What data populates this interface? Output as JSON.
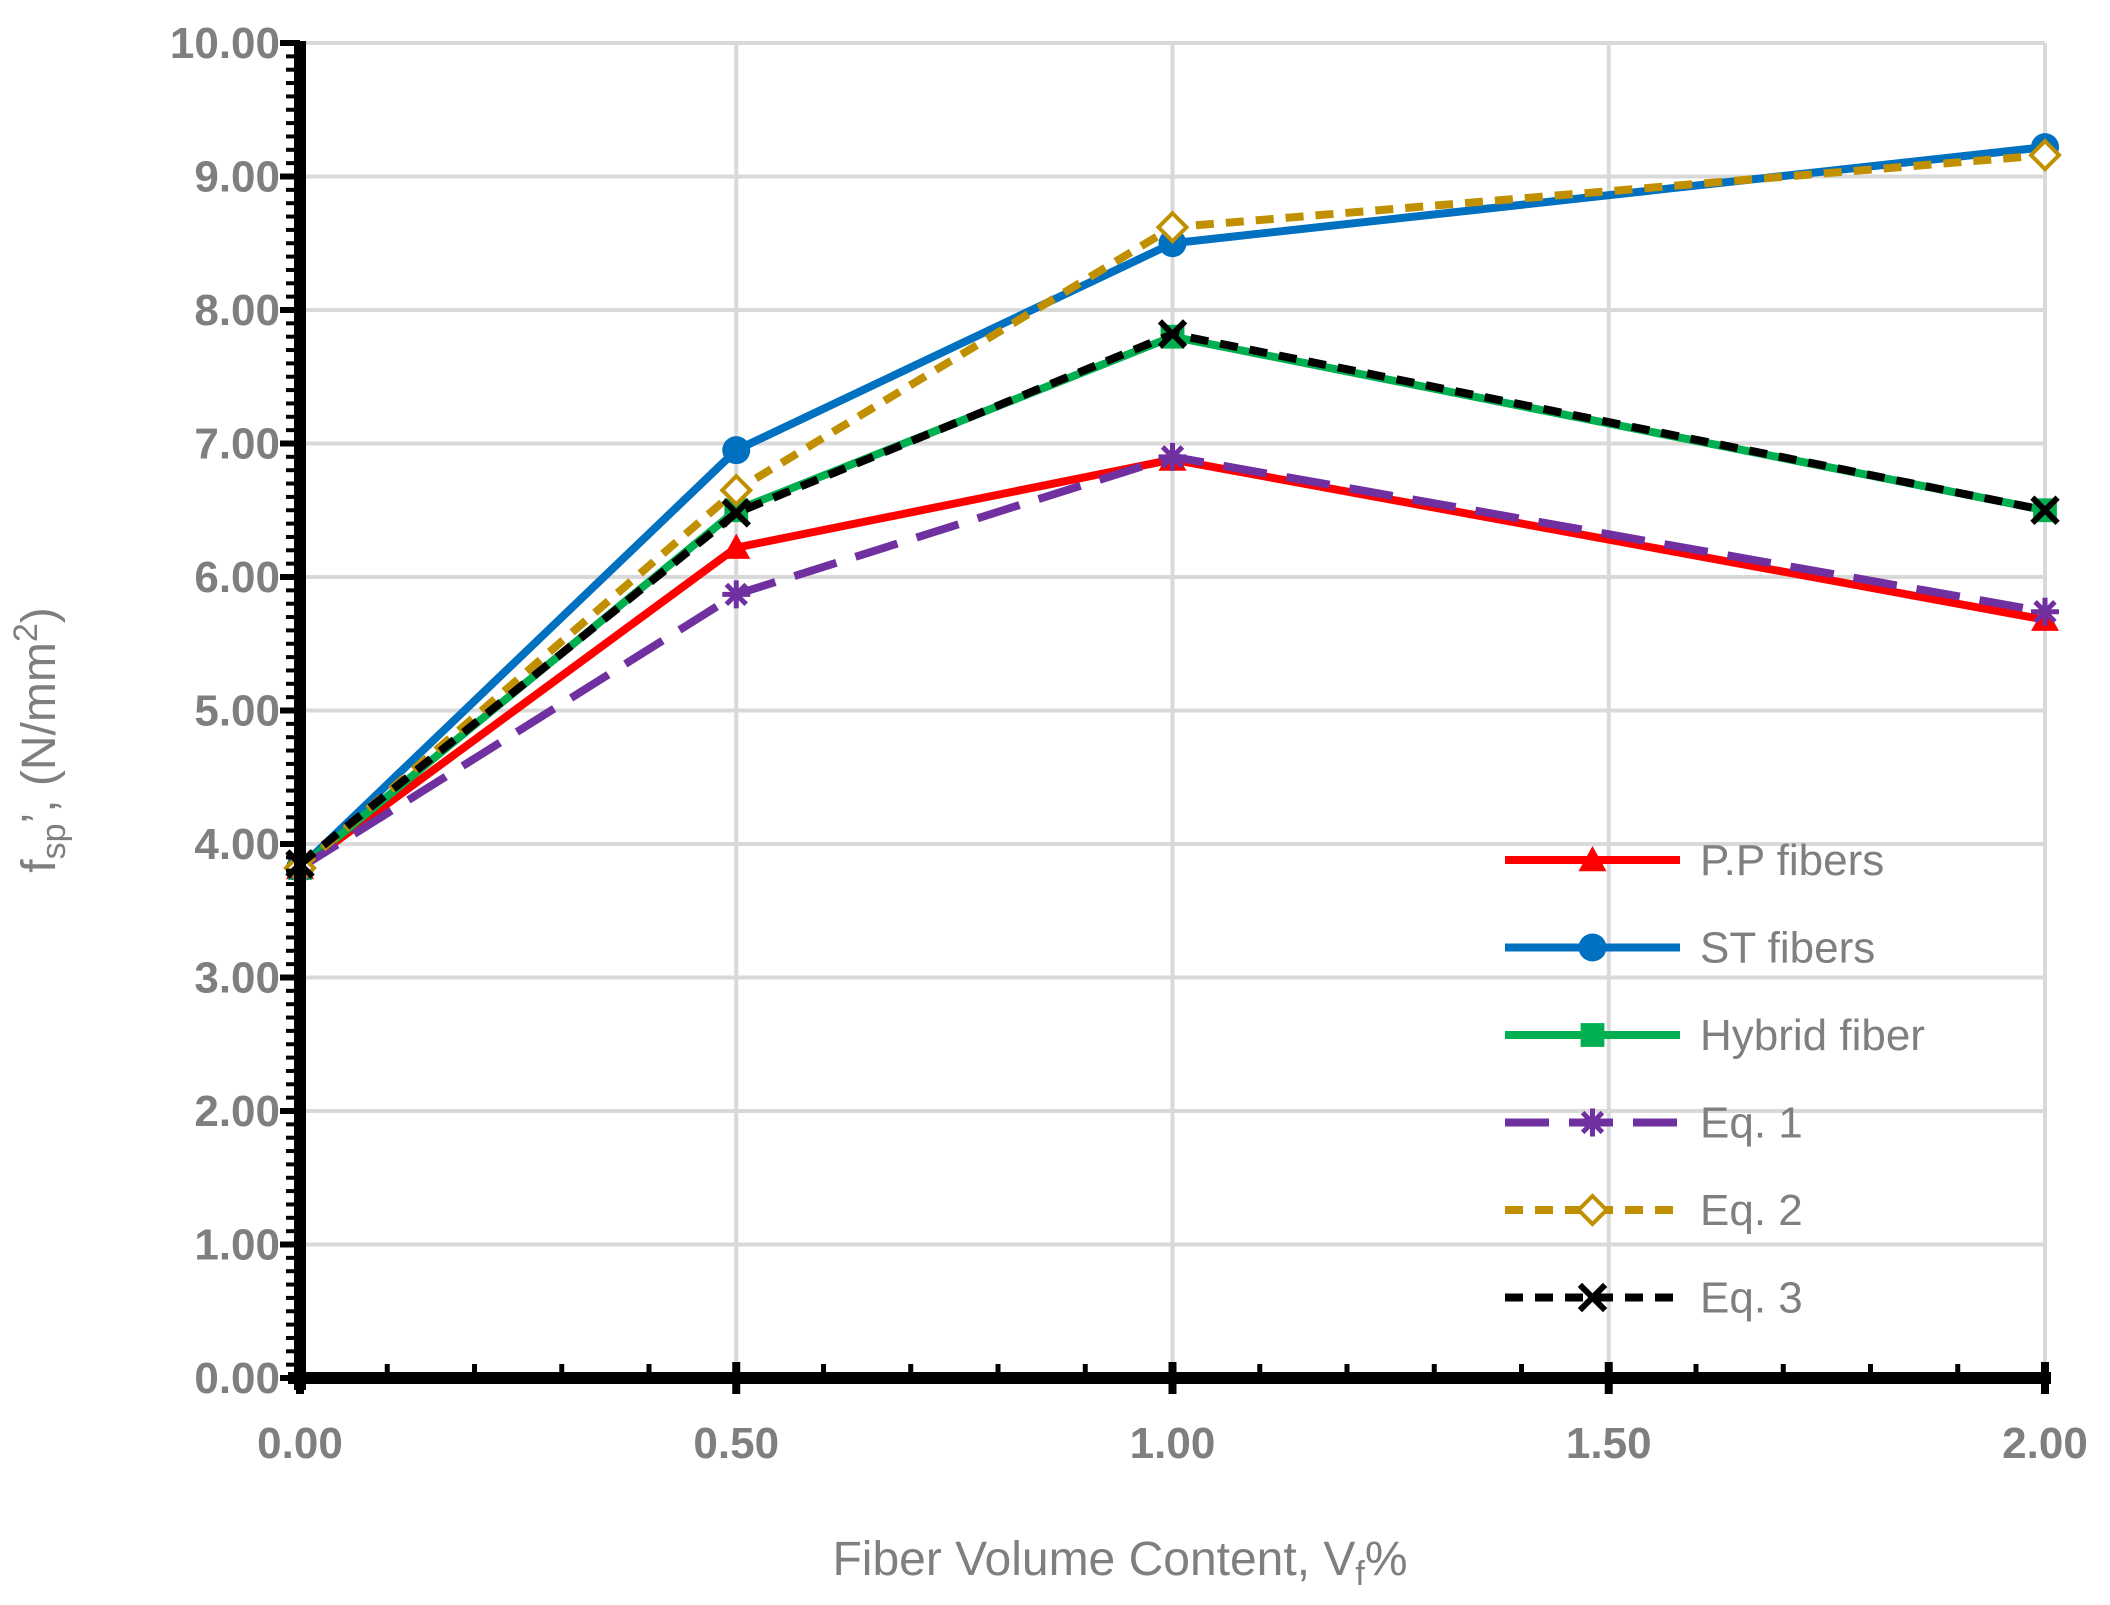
{
  "chart_data": {
    "type": "line",
    "title": "",
    "xlabel": {
      "main": "Fiber Volume Content, V",
      "sub": "f",
      "suffix": "%"
    },
    "ylabel": {
      "pre": "f",
      "sub": "sp",
      "mid": "’, (N/mm",
      "sup": "2",
      "post": ")"
    },
    "x_tick_labels": [
      "0.00",
      "0.50",
      "1.00",
      "1.50",
      "2.00"
    ],
    "x_tick_positions": [
      0,
      0.5,
      1.0,
      1.5,
      2.0
    ],
    "y_tick_labels": [
      "0.00",
      "1.00",
      "2.00",
      "3.00",
      "4.00",
      "5.00",
      "6.00",
      "7.00",
      "8.00",
      "9.00",
      "10.00"
    ],
    "ylim": [
      0,
      10
    ],
    "grid": true,
    "legend_position": "bottom-right",
    "x": [
      0,
      0.5,
      1.0,
      2.0
    ],
    "series": [
      {
        "name": "P.P fibers",
        "values": [
          3.82,
          6.22,
          6.88,
          5.68
        ],
        "color": "#ff0000",
        "dash": "solid",
        "marker": "triangle"
      },
      {
        "name": "ST fibers",
        "values": [
          3.82,
          6.95,
          8.5,
          9.22
        ],
        "color": "#0070c0",
        "dash": "solid",
        "marker": "circle"
      },
      {
        "name": "Hybrid fiber",
        "values": [
          3.82,
          6.5,
          7.8,
          6.5
        ],
        "color": "#00b050",
        "dash": "solid",
        "marker": "square"
      },
      {
        "name": "Eq. 1",
        "values": [
          3.82,
          5.87,
          6.9,
          5.74
        ],
        "color": "#7030a0",
        "dash": "long-dash",
        "marker": "asterisk"
      },
      {
        "name": "Eq. 2",
        "values": [
          3.82,
          6.65,
          8.62,
          9.16
        ],
        "color": "#c09000",
        "dash": "short-dash",
        "marker": "diamond"
      },
      {
        "name": "Eq. 3",
        "values": [
          3.85,
          6.48,
          7.82,
          6.5
        ],
        "color": "#000000",
        "dash": "short-dash",
        "marker": "x"
      }
    ]
  }
}
